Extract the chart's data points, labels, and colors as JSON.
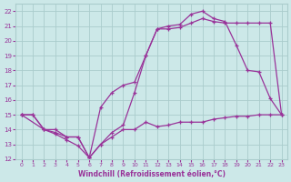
{
  "xlabel": "Windchill (Refroidissement éolien,°C)",
  "background_color": "#cce8e8",
  "grid_color": "#aacccc",
  "line_color": "#993399",
  "xlim": [
    -0.5,
    23.5
  ],
  "ylim": [
    12,
    22.5
  ],
  "xticks": [
    0,
    1,
    2,
    3,
    4,
    5,
    6,
    7,
    8,
    9,
    10,
    11,
    12,
    13,
    14,
    15,
    16,
    17,
    18,
    19,
    20,
    21,
    22,
    23
  ],
  "yticks": [
    12,
    13,
    14,
    15,
    16,
    17,
    18,
    19,
    20,
    21,
    22
  ],
  "lines": [
    {
      "x": [
        0,
        1,
        2,
        3,
        4,
        5,
        6,
        7,
        8,
        9,
        10,
        11,
        12,
        13,
        14,
        15,
        16,
        17,
        18,
        19,
        20,
        21,
        22,
        23
      ],
      "y": [
        15,
        15,
        14,
        13.7,
        13.3,
        12.9,
        12.1,
        15.5,
        16.5,
        17,
        17.2,
        19.0,
        20.8,
        20.8,
        20.9,
        21.2,
        21.5,
        21.3,
        21.2,
        21.2,
        21.2,
        21.2,
        21.2,
        15.0
      ]
    },
    {
      "x": [
        0,
        2,
        3,
        4,
        5,
        6,
        7,
        8,
        9,
        10,
        11,
        12,
        13,
        14,
        15,
        16,
        17,
        18,
        19,
        20,
        21,
        22,
        23
      ],
      "y": [
        15,
        14,
        13.8,
        13.5,
        13.5,
        12.1,
        13.0,
        13.8,
        14.3,
        16.5,
        19.0,
        20.8,
        21.0,
        21.1,
        21.8,
        22.0,
        21.5,
        21.3,
        19.7,
        18.0,
        17.9,
        16.1,
        15.0
      ]
    },
    {
      "x": [
        0,
        1,
        2,
        3,
        4,
        5,
        6,
        7,
        8,
        9,
        10,
        11,
        12,
        13,
        14,
        15,
        16,
        17,
        18,
        19,
        20,
        21,
        22,
        23
      ],
      "y": [
        15,
        15,
        14,
        14,
        13.5,
        13.5,
        12.1,
        13.0,
        13.5,
        14.0,
        14.0,
        14.5,
        14.2,
        14.3,
        14.5,
        14.5,
        14.5,
        14.7,
        14.8,
        14.9,
        14.9,
        15.0,
        15.0,
        15.0
      ]
    }
  ]
}
